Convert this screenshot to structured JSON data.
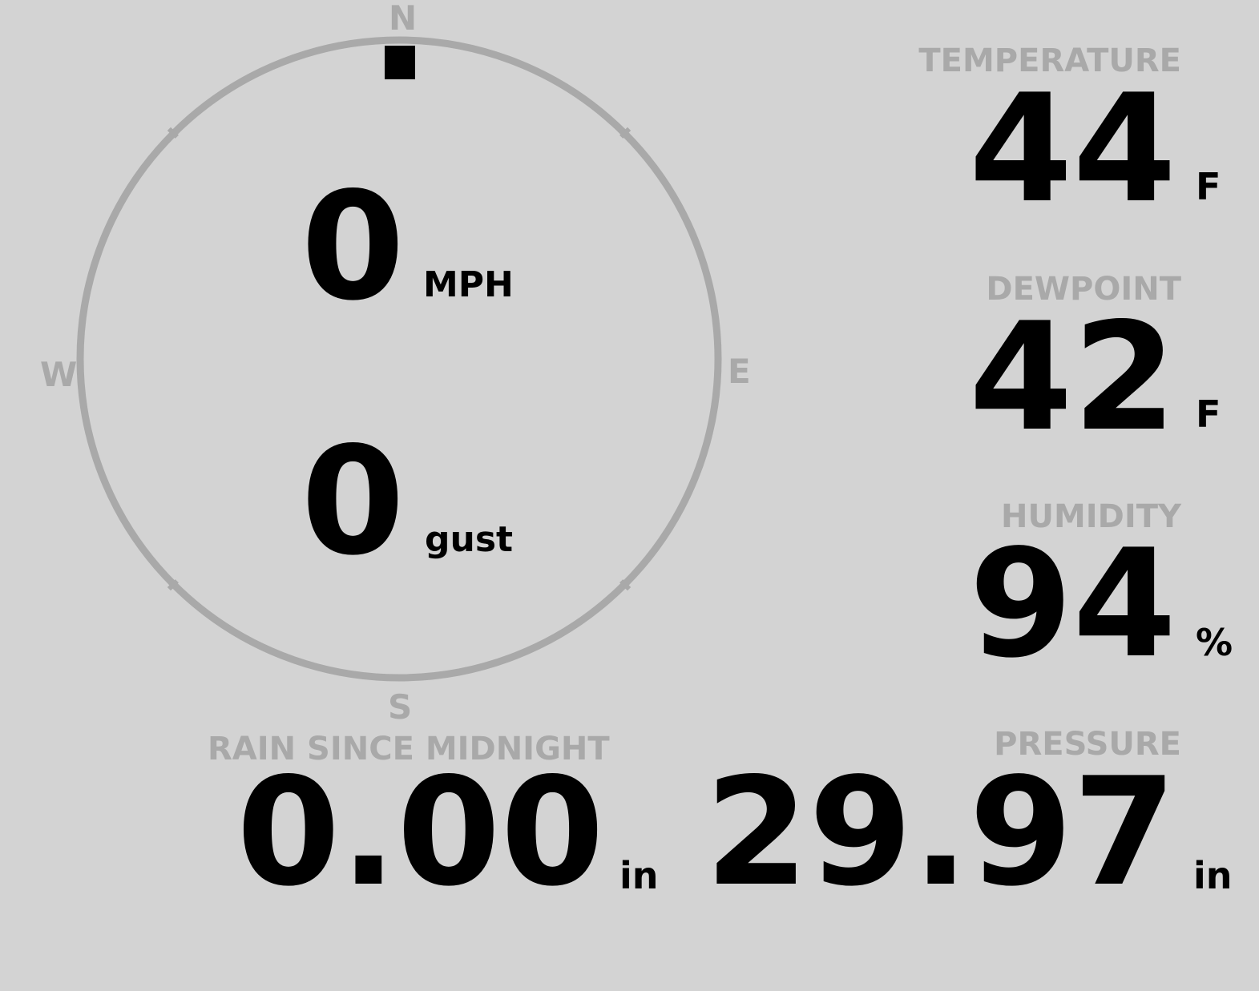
{
  "colors": {
    "background": "#d3d3d3",
    "label": "#a9a9a9",
    "value": "#000000",
    "indicator": "#000000"
  },
  "wind": {
    "cardinals": {
      "n": "N",
      "e": "E",
      "s": "S",
      "w": "W"
    },
    "speed": "0",
    "speed_unit": "MPH",
    "gust": "0",
    "gust_unit": "gust",
    "direction_degrees": 0
  },
  "temperature": {
    "label": "TEMPERATURE",
    "value": "44",
    "unit": "F"
  },
  "dewpoint": {
    "label": "DEWPOINT",
    "value": "42",
    "unit": "F"
  },
  "humidity": {
    "label": "HUMIDITY",
    "value": "94",
    "unit": "%"
  },
  "pressure": {
    "label": "PRESSURE",
    "value": "29.97",
    "unit": "in"
  },
  "rain": {
    "label": "RAIN SINCE MIDNIGHT",
    "value": "0.00",
    "unit": "in"
  }
}
